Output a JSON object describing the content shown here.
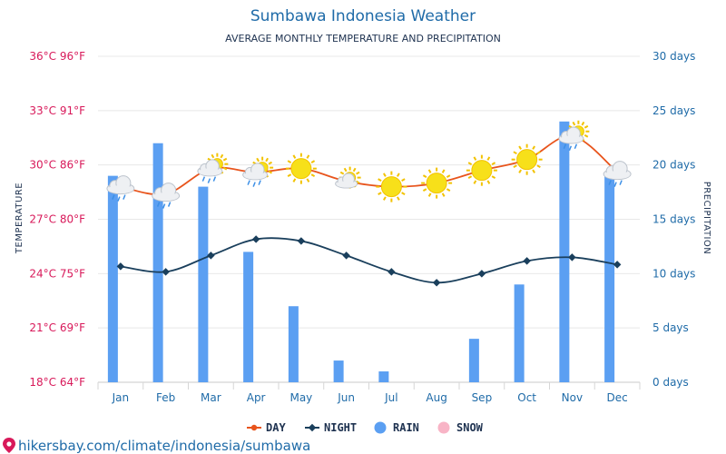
{
  "chart_data": {
    "type": "line",
    "title": "Sumbawa Indonesia Weather",
    "subtitle": "AVERAGE MONTHLY TEMPERATURE AND PRECIPITATION",
    "ylabel_left": "TEMPERATURE",
    "ylabel_right": "PRECIPITATION",
    "categories": [
      "Jan",
      "Feb",
      "Mar",
      "Apr",
      "May",
      "Jun",
      "Jul",
      "Aug",
      "Sep",
      "Oct",
      "Nov",
      "Dec"
    ],
    "ylim_left_c": [
      18,
      36
    ],
    "yticks_left": [
      "18°C 64°F",
      "21°C 69°F",
      "24°C 75°F",
      "27°C 80°F",
      "30°C 86°F",
      "33°C 91°F",
      "36°C 96°F"
    ],
    "ylim_right_days": [
      0,
      30
    ],
    "yticks_right": [
      "0 days",
      "5 days",
      "10 days",
      "15 days",
      "20 days",
      "25 days",
      "30 days"
    ],
    "series": [
      {
        "name": "DAY",
        "kind": "line",
        "color": "#e8541c",
        "values": [
          28.8,
          28.4,
          29.8,
          29.6,
          29.8,
          29.1,
          28.8,
          29.0,
          29.7,
          30.3,
          31.6,
          29.6
        ]
      },
      {
        "name": "NIGHT",
        "kind": "line",
        "color": "#1a3f5c",
        "values": [
          24.4,
          24.1,
          25.0,
          25.9,
          25.8,
          25.0,
          24.1,
          23.5,
          24.0,
          24.7,
          24.9,
          24.5
        ]
      },
      {
        "name": "RAIN",
        "kind": "bar",
        "color": "#5b9ff2",
        "values": [
          19,
          22,
          18,
          12,
          7,
          2,
          1,
          0,
          4,
          9,
          24,
          19
        ]
      },
      {
        "name": "SNOW",
        "kind": "bar",
        "color": "#f8b4c6",
        "values": [
          0,
          0,
          0,
          0,
          0,
          0,
          0,
          0,
          0,
          0,
          0,
          0
        ]
      }
    ],
    "weather_icons": [
      "rain",
      "rain",
      "partly-cloudy-rain",
      "partly-cloudy-rain",
      "sun",
      "partly-cloudy",
      "sun",
      "sun",
      "sun",
      "sun",
      "partly-cloudy-rain",
      "rain"
    ],
    "grid": true,
    "legend_position": "bottom-center"
  },
  "legend": [
    {
      "label": "DAY",
      "color": "#e8541c",
      "shape": "line-dot"
    },
    {
      "label": "NIGHT",
      "color": "#1a3f5c",
      "shape": "line-diamond"
    },
    {
      "label": "RAIN",
      "color": "#5b9ff2",
      "shape": "circle"
    },
    {
      "label": "SNOW",
      "color": "#f8b4c6",
      "shape": "circle"
    }
  ],
  "footer": {
    "text": "hikersbay.com/climate/indonesia/sumbawa",
    "icon": "location-pin-icon",
    "color": "#d8195a"
  }
}
